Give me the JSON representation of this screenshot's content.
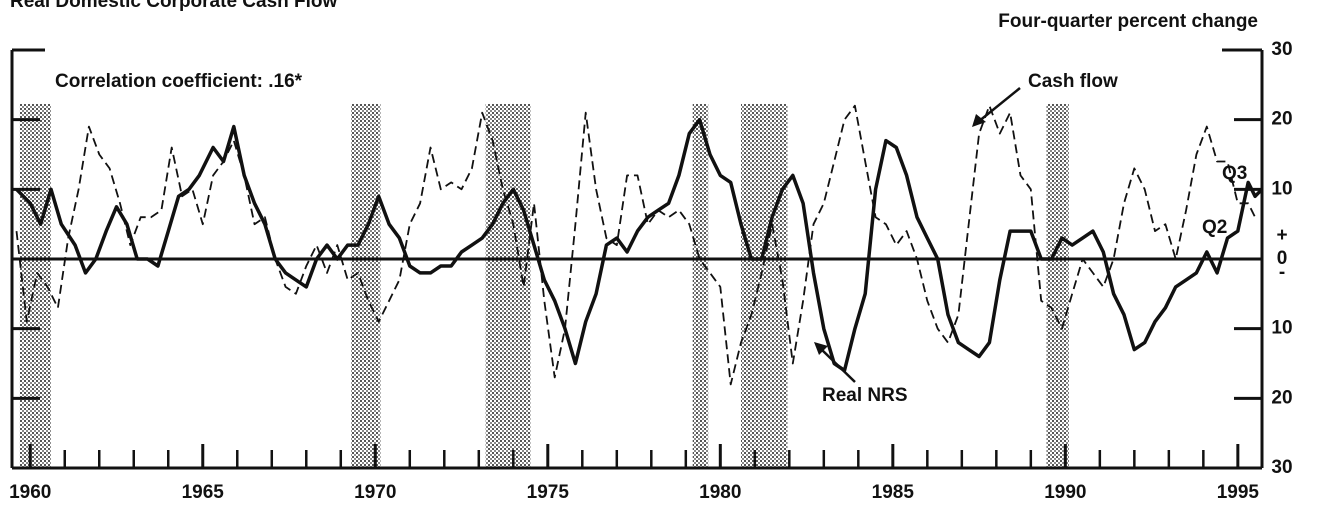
{
  "chart_data": {
    "type": "line",
    "title": "Real Domestic Corporate Cash Flow",
    "y_axis_label": "Four-quarter percent change",
    "annotations": [
      "Correlation coefficient: .16*",
      "Cash flow",
      "Real NRS",
      "Q3",
      "Q2"
    ],
    "sign_labels": [
      "+",
      "-"
    ],
    "xlim": [
      1959.5,
      1995.7
    ],
    "xticks": [
      1960,
      1965,
      1970,
      1975,
      1980,
      1985,
      1990,
      1995
    ],
    "xminor": [
      1961,
      1962,
      1963,
      1964,
      1966,
      1967,
      1968,
      1969,
      1971,
      1972,
      1973,
      1974,
      1976,
      1977,
      1978,
      1979,
      1981,
      1982,
      1983,
      1984,
      1986,
      1987,
      1988,
      1989,
      1991,
      1992,
      1993,
      1994
    ],
    "ylim": [
      -30,
      30
    ],
    "yticks": [
      {
        "value": 30,
        "label": "30"
      },
      20,
      10,
      0,
      {
        "value": -10,
        "label": "10"
      },
      {
        "value": -20,
        "label": "20"
      },
      {
        "value": -30,
        "label": "30"
      }
    ],
    "recessions": [
      [
        1959.7,
        1960.6
      ],
      [
        1969.3,
        1970.15
      ],
      [
        1973.2,
        1974.5
      ],
      [
        1979.2,
        1979.65
      ],
      [
        1980.6,
        1981.95
      ],
      [
        1989.45,
        1990.1
      ]
    ],
    "series": [
      {
        "name": "Real NRS",
        "color": "#111111",
        "style": "solid",
        "x": [
          1959.6,
          1960.0,
          1960.3,
          1960.6,
          1960.9,
          1961.3,
          1961.6,
          1961.9,
          1962.2,
          1962.5,
          1962.8,
          1963.1,
          1963.4,
          1963.7,
          1964.0,
          1964.3,
          1964.6,
          1964.9,
          1965.3,
          1965.6,
          1965.9,
          1966.2,
          1966.5,
          1966.8,
          1967.1,
          1967.4,
          1967.7,
          1968.0,
          1968.3,
          1968.6,
          1968.9,
          1969.2,
          1969.5,
          1969.8,
          1970.1,
          1970.4,
          1970.7,
          1971.0,
          1971.3,
          1971.6,
          1971.9,
          1972.2,
          1972.5,
          1972.8,
          1973.1,
          1973.4,
          1973.7,
          1974.0,
          1974.3,
          1974.6,
          1974.9,
          1975.2,
          1975.5,
          1975.8,
          1976.1,
          1976.4,
          1976.7,
          1977.0,
          1977.3,
          1977.6,
          1977.9,
          1978.2,
          1978.5,
          1978.8,
          1979.1,
          1979.4,
          1979.7,
          1980.0,
          1980.3,
          1980.6,
          1980.9,
          1981.2,
          1981.5,
          1981.8,
          1982.1,
          1982.4,
          1982.7,
          1983.0,
          1983.3,
          1983.6,
          1983.9,
          1984.2,
          1984.5,
          1984.8,
          1985.1,
          1985.4,
          1985.7,
          1986.0,
          1986.3,
          1986.6,
          1986.9,
          1987.2,
          1987.5,
          1987.8,
          1988.1,
          1988.4,
          1988.7,
          1989.0,
          1989.3,
          1989.6,
          1989.9,
          1990.2,
          1990.5,
          1990.8,
          1991.1,
          1991.4,
          1991.7,
          1992.0,
          1992.3,
          1992.6,
          1992.9,
          1993.2,
          1993.5,
          1993.8,
          1994.1,
          1994.4,
          1994.7,
          1995.0,
          1995.3,
          1995.5,
          1995.7
        ],
        "values": [
          10,
          8,
          5,
          10,
          5,
          2,
          -2,
          0,
          4,
          7.5,
          5,
          0,
          0,
          -1,
          4,
          9,
          10,
          12,
          16,
          14,
          19,
          12,
          8,
          5,
          0,
          -2,
          -3,
          -4,
          0,
          2,
          0,
          2,
          2,
          5,
          9,
          5,
          3,
          -1,
          -2,
          -2,
          -1,
          -1,
          1,
          2,
          3,
          5,
          8,
          10,
          7,
          2,
          -3,
          -6,
          -10,
          -15,
          -9,
          -5,
          2,
          3,
          1,
          4,
          6,
          7,
          8,
          12,
          18,
          20,
          15,
          12,
          11,
          5,
          0,
          0,
          6,
          10,
          12,
          8,
          -2,
          -10,
          -15,
          -16,
          -10,
          -5,
          10,
          17,
          16,
          12,
          6,
          3,
          0,
          -8,
          -12,
          -13,
          -14,
          -12,
          -3,
          4,
          4,
          4,
          0,
          0,
          3,
          2,
          3,
          4,
          1,
          -5,
          -8,
          -13,
          -12,
          -9,
          -7,
          -4,
          -3,
          -2,
          1,
          -2,
          3,
          4,
          11,
          9,
          10
        ]
      },
      {
        "name": "Cash flow",
        "color": "#111111",
        "style": "dashed",
        "x": [
          1959.6,
          1959.9,
          1960.2,
          1960.5,
          1960.8,
          1961.1,
          1961.4,
          1961.7,
          1962.0,
          1962.3,
          1962.6,
          1962.9,
          1963.2,
          1963.5,
          1963.8,
          1964.1,
          1964.4,
          1964.7,
          1965.0,
          1965.3,
          1965.6,
          1965.9,
          1966.2,
          1966.5,
          1966.8,
          1967.1,
          1967.4,
          1967.7,
          1968.0,
          1968.3,
          1968.6,
          1968.9,
          1969.2,
          1969.5,
          1969.8,
          1970.1,
          1970.4,
          1970.7,
          1971.0,
          1971.3,
          1971.6,
          1971.9,
          1972.2,
          1972.5,
          1972.8,
          1973.1,
          1973.4,
          1973.7,
          1974.0,
          1974.3,
          1974.6,
          1974.9,
          1975.2,
          1975.5,
          1975.8,
          1976.1,
          1976.4,
          1976.7,
          1977.0,
          1977.3,
          1977.6,
          1977.9,
          1978.2,
          1978.5,
          1978.8,
          1979.1,
          1979.4,
          1979.7,
          1980.0,
          1980.3,
          1980.6,
          1980.9,
          1981.2,
          1981.5,
          1981.8,
          1982.1,
          1982.4,
          1982.7,
          1983.0,
          1983.3,
          1983.6,
          1983.9,
          1984.2,
          1984.5,
          1984.8,
          1985.1,
          1985.4,
          1985.7,
          1986.0,
          1986.3,
          1986.6,
          1986.9,
          1987.2,
          1987.5,
          1987.8,
          1988.1,
          1988.4,
          1988.7,
          1989.0,
          1989.3,
          1989.6,
          1989.9,
          1990.2,
          1990.5,
          1990.8,
          1991.1,
          1991.4,
          1991.7,
          1992.0,
          1992.3,
          1992.6,
          1992.9,
          1993.2,
          1993.5,
          1993.8,
          1994.1,
          1994.4,
          1994.7,
          1995.0,
          1995.3,
          1995.5
        ],
        "values": [
          4,
          -9,
          -2,
          -4,
          -7,
          3,
          10,
          19,
          15,
          13,
          8,
          2,
          6,
          6,
          7,
          16,
          9,
          10,
          5,
          12,
          14,
          17,
          12,
          5,
          6,
          0,
          -4,
          -5,
          -1,
          2,
          -2,
          2,
          -3,
          -2,
          -6,
          -9,
          -6,
          -3,
          5,
          8,
          16,
          10,
          11,
          10,
          13,
          21,
          17,
          10,
          5,
          -4,
          8,
          -6,
          -17,
          -10,
          5,
          21,
          10,
          3,
          2,
          12,
          12,
          5,
          7,
          6,
          7,
          5,
          0,
          -2,
          -4,
          -18,
          -12,
          -8,
          -2,
          5,
          -3,
          -15,
          -6,
          5,
          8,
          14,
          20,
          22,
          14,
          6,
          5,
          2,
          4,
          0,
          -6,
          -10,
          -12,
          -8,
          5,
          18,
          22,
          18,
          21,
          12,
          10,
          -6,
          -7,
          -10,
          -5,
          0,
          -2,
          -4,
          0,
          8,
          13,
          10,
          4,
          5,
          0,
          7,
          15,
          19,
          14,
          14,
          8,
          8,
          6
        ]
      }
    ]
  }
}
